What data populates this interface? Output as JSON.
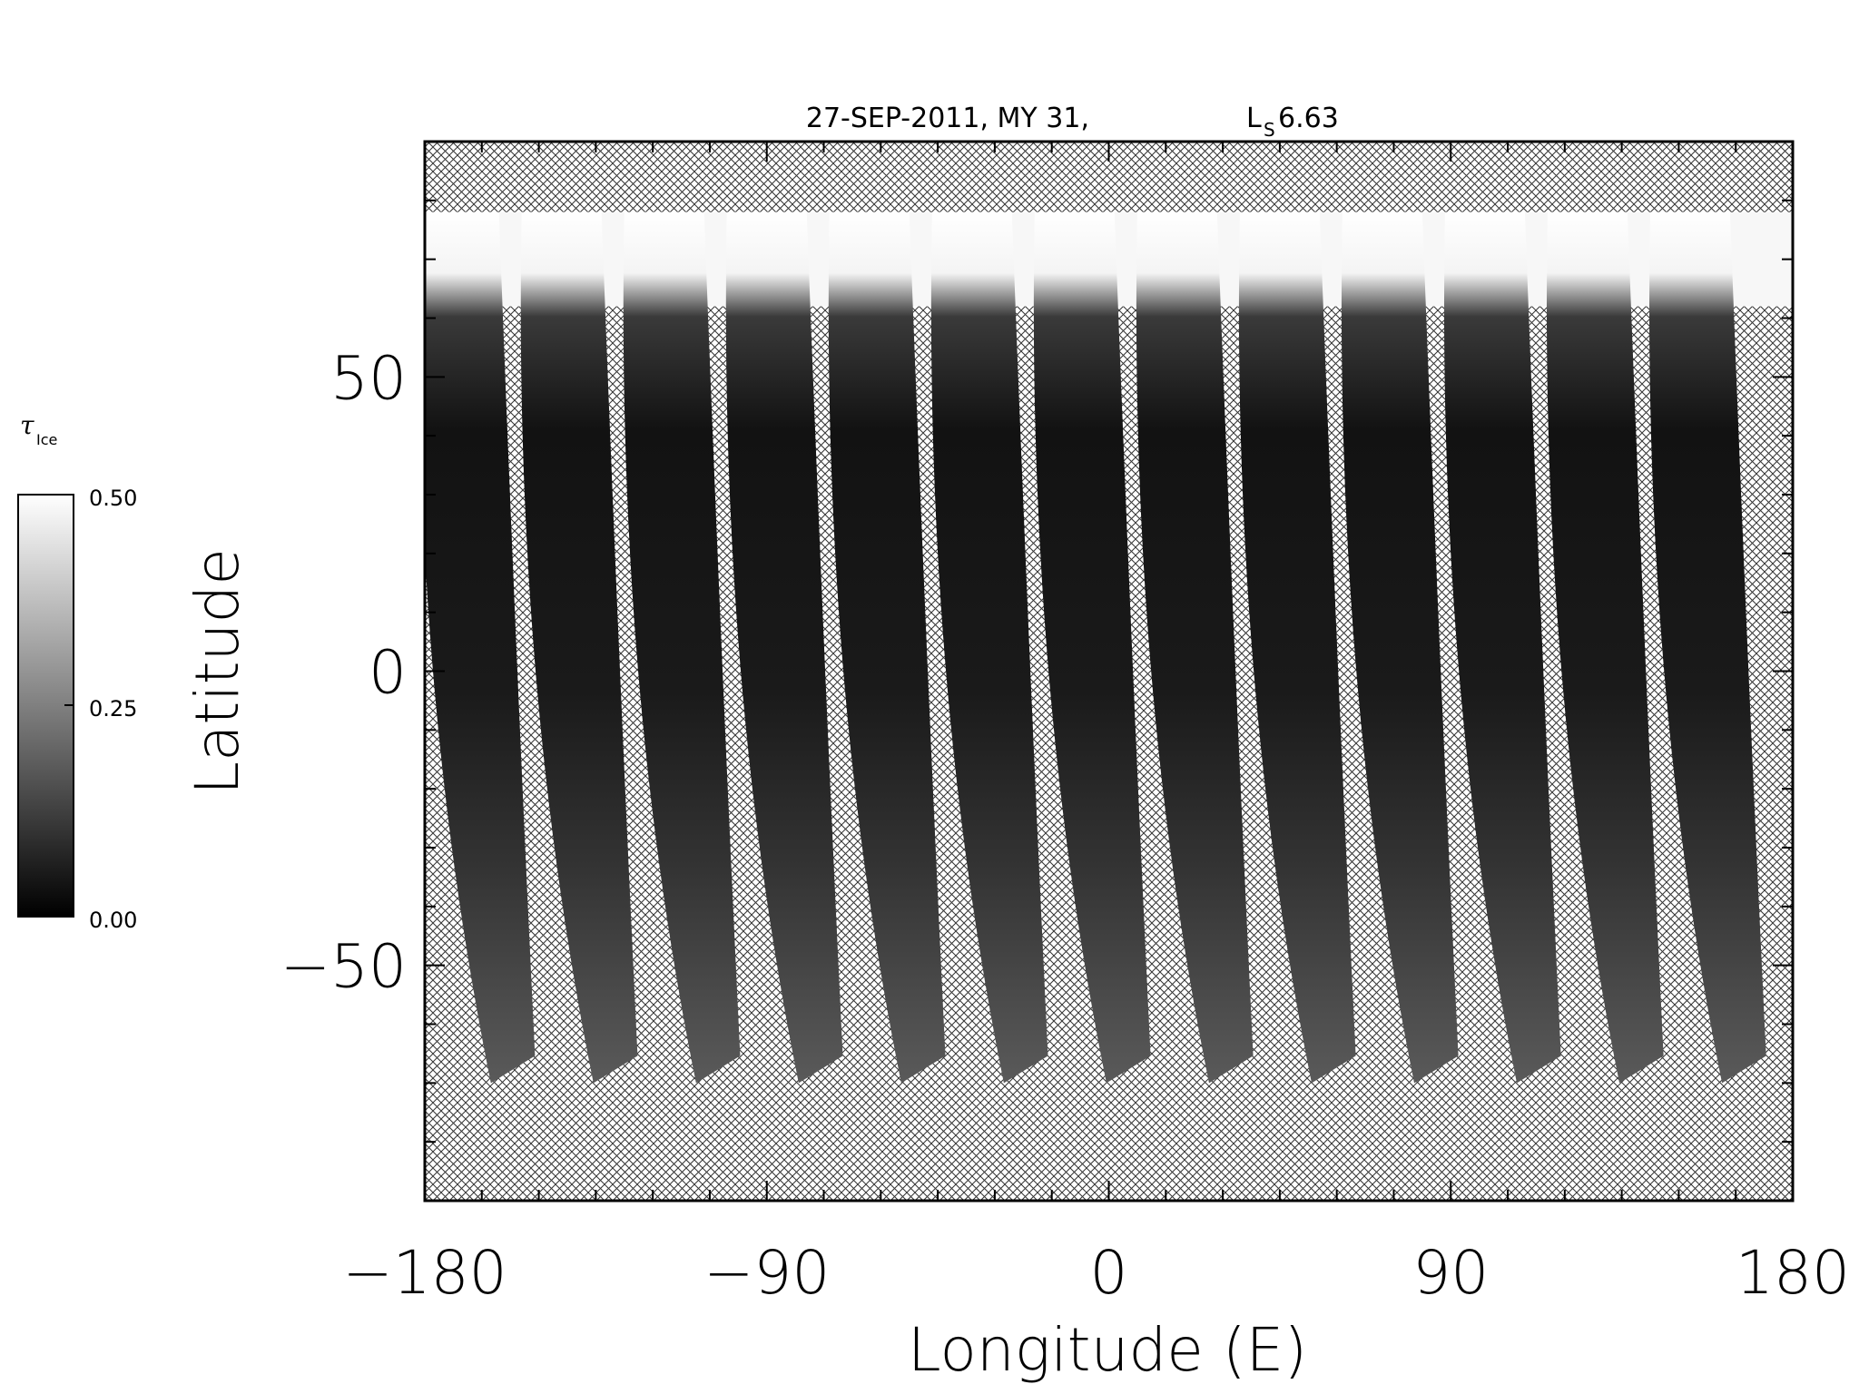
{
  "chart_data": {
    "type": "heatmap",
    "title": {
      "date": "27-SEP-2011, MY 31,",
      "ls_label": "L",
      "ls_sub": "S",
      "ls_value": "6.63"
    },
    "xlabel": "Longitude (E)",
    "ylabel": "Latitude",
    "xlim": [
      -180,
      180
    ],
    "ylim": [
      -90,
      90
    ],
    "xticks": [
      -180,
      -90,
      0,
      90,
      180
    ],
    "xtick_labels": [
      "−180",
      "−90",
      "0",
      "90",
      "180"
    ],
    "yticks": [
      -50,
      0,
      50
    ],
    "ytick_labels": [
      "−50",
      "0",
      "50"
    ],
    "x_minor_step": 15,
    "y_minor_step": 10,
    "grid": false,
    "no_data_pattern": "crosshatch",
    "data_lat_range": [
      -70,
      78
    ],
    "orbit_swaths": {
      "count": 13,
      "top_lon": [
        -171,
        -144,
        -117,
        -90,
        -63,
        -36,
        -9,
        18,
        45,
        72,
        99,
        126,
        153
      ],
      "bottom_lon": [
        -158,
        -131,
        -104,
        -77,
        -50,
        -23,
        4,
        31,
        58,
        85,
        112,
        139,
        166
      ],
      "width_deg": 21,
      "high_lat_tau": 0.5,
      "mid_lat_tau": 0.05,
      "south_lat_tau": 0.18
    },
    "colorbar": {
      "label": "τ",
      "label_sub": "Ice",
      "min": 0.0,
      "max": 0.5,
      "tick_labels": [
        "0.50",
        "0.25",
        "0.00"
      ],
      "colors": [
        "#ffffff",
        "#000000"
      ]
    }
  }
}
